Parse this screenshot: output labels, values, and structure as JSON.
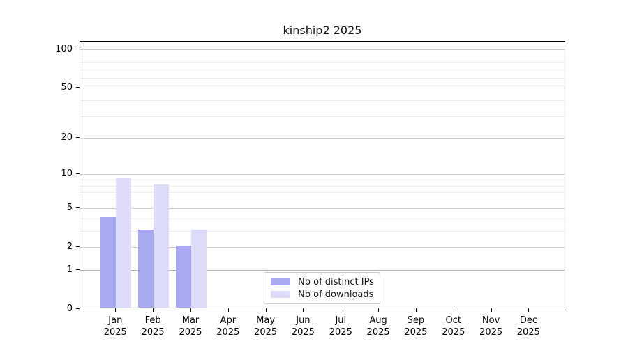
{
  "title": "kinship2 2025",
  "colors": {
    "ips_bar": "#a9a9f1",
    "downloads_bar": "#dcdcf9",
    "grid_major": "#cccccc",
    "grid_minor": "#ececec",
    "grid_unit_line": "#b0b0b0",
    "spine": "#000000",
    "legend_border": "#cccccc"
  },
  "legend": {
    "items": [
      {
        "label": "Nb of distinct IPs"
      },
      {
        "label": "Nb of downloads"
      }
    ]
  },
  "chart_data": {
    "type": "bar",
    "title": "kinship2 2025",
    "categories": [
      "Jan 2025",
      "Feb 2025",
      "Mar 2025",
      "Apr 2025",
      "May 2025",
      "Jun 2025",
      "Jul 2025",
      "Aug 2025",
      "Sep 2025",
      "Oct 2025",
      "Nov 2025",
      "Dec 2025"
    ],
    "series": [
      {
        "name": "Nb of distinct IPs",
        "color": "#a9a9f1",
        "values": [
          4,
          3,
          2,
          0,
          0,
          0,
          0,
          0,
          0,
          0,
          0,
          0
        ]
      },
      {
        "name": "Nb of downloads",
        "color": "#dcdcf9",
        "values": [
          9,
          8,
          3,
          0,
          0,
          0,
          0,
          0,
          0,
          0,
          0,
          0
        ]
      }
    ],
    "xlabel": "",
    "ylabel": "",
    "yscale": "log1p",
    "y_ticks": [
      0,
      1,
      2,
      5,
      10,
      20,
      50,
      100
    ],
    "y_minor_ticks": [
      3,
      4,
      6,
      7,
      8,
      9,
      30,
      40,
      60,
      70,
      80,
      90
    ],
    "ylim": [
      0,
      115
    ],
    "grid": true,
    "legend_position": "lower center"
  }
}
